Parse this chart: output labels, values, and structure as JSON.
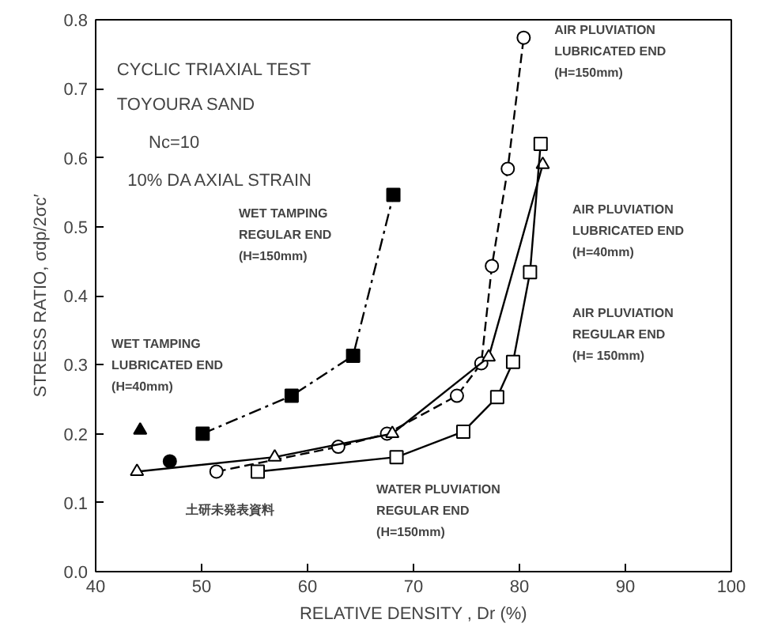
{
  "chart_data": {
    "type": "line",
    "xlabel": "RELATIVE DENSITY , Dr (%)",
    "ylabel": "STRESS RATIO, σdp/2σc′",
    "xlim": [
      40,
      100
    ],
    "ylim": [
      0,
      0.8
    ],
    "xticks": [
      40,
      50,
      60,
      70,
      80,
      90,
      100
    ],
    "yticks": [
      {
        "value": 0,
        "label": "0.0"
      },
      0.1,
      0.2,
      0.3,
      0.4,
      0.5,
      0.6,
      0.7,
      0.8
    ],
    "grid": false,
    "series": [
      {
        "color": "#000000",
        "marker": "none",
        "line_style": "dashdot",
        "x": [
          50.1,
          58.5,
          64.3,
          68.1
        ],
        "values": [
          0.2,
          0.255,
          0.313,
          0.546
        ]
      },
      {
        "type": "scatter",
        "color": "#000000",
        "marker": "square",
        "x": [
          50.1,
          58.5,
          64.3,
          68.1
        ],
        "values": [
          0.2,
          0.255,
          0.313,
          0.546
        ]
      },
      {
        "color": "#000000",
        "marker": "circle",
        "line_style": "dashed",
        "x": [
          51.4,
          62.9,
          67.5,
          74.1,
          76.4,
          77.4,
          78.9,
          80.4
        ],
        "values": [
          0.145,
          0.181,
          0.2,
          0.255,
          0.302,
          0.443,
          0.584,
          0.774
        ]
      },
      {
        "color": "#000000",
        "marker": "triangle",
        "line_style": "solid",
        "x": [
          43.9,
          56.9,
          68.0,
          77.1,
          82.2
        ],
        "values": [
          0.145,
          0.166,
          0.2,
          0.311,
          0.59
        ]
      },
      {
        "color": "#000000",
        "marker": "square",
        "line_style": "solid",
        "x": [
          55.3,
          68.4,
          74.7,
          77.9,
          79.4,
          81.0,
          82.0
        ],
        "values": [
          0.145,
          0.166,
          0.203,
          0.253,
          0.304,
          0.434,
          0.62
        ]
      },
      {
        "type": "scatter",
        "color": "#000000",
        "marker": "triangle",
        "x": [
          44.2
        ],
        "values": [
          0.205
        ]
      },
      {
        "type": "scatter",
        "color": "#000000",
        "marker": "circle",
        "x": [
          47.0
        ],
        "values": [
          0.16
        ]
      }
    ],
    "annotations": [
      "CYCLIC TRIAXIAL TEST",
      "TOYOURA  SAND",
      "Nc=10",
      "10% DA AXIAL STRAIN",
      "WET TAMPING\nREGULAR END\n(H=150mm)",
      "WET TAMPING\nLUBRICATED END\n(H=40mm)",
      "AIR PLUVIATION\nLUBRICATED END\n(H=150mm)",
      "AIR PLUVIATION\nLUBRICATED END\n(H=40mm)",
      "AIR PLUVIATION\nREGULAR END\n(H= 150mm)",
      "WATER PLUVIATION\nREGULAR END\n(H=150mm)",
      "土研未発表資料"
    ]
  }
}
